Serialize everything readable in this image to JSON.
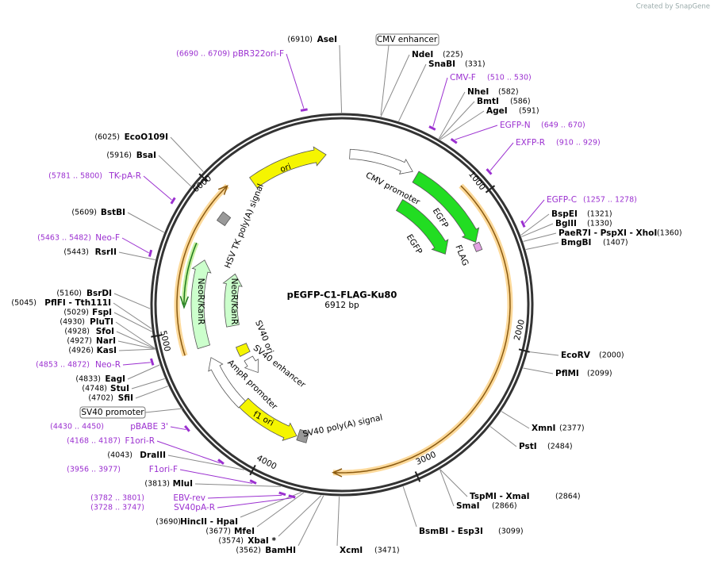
{
  "header": {
    "credit": "Created by SnapGene"
  },
  "map": {
    "name": "pEGFP-C1-FLAG-Ku80",
    "length": "6912 bp",
    "ticks": [
      1000,
      2000,
      3000,
      4000,
      5000,
      6000
    ]
  },
  "outer_labels": [
    "CMV enhancer",
    "SV40 promoter"
  ],
  "features": [
    "ori",
    "CMV promoter",
    "EGFP",
    "FLAG",
    "EGFP",
    "HSV TK poly(A) signal",
    "NeoR/KanR",
    "NeoR/KanR",
    "SV40 ori",
    "SV40 enhancer",
    "AmpR promoter",
    "f1 ori",
    "SV40 poly(A) signal"
  ],
  "sites": [
    {
      "name": "AseI",
      "position": "(6910)"
    },
    {
      "name": "NdeI",
      "position": "(225)"
    },
    {
      "name": "SnaBI",
      "position": "(331)"
    },
    {
      "name": "NheI",
      "position": "(582)"
    },
    {
      "name": "BmtI",
      "position": "(586)"
    },
    {
      "name": "AgeI",
      "position": "(591)"
    },
    {
      "name": "BspEI",
      "position": "(1321)"
    },
    {
      "name": "BglII",
      "position": "(1330)"
    },
    {
      "name": "PaeR7I - PspXI - XhoI",
      "position": "(1360)"
    },
    {
      "name": "BmgBI",
      "position": "(1407)"
    },
    {
      "name": "EcoRV",
      "position": "(2000)"
    },
    {
      "name": "PflMI",
      "position": "(2099)"
    },
    {
      "name": "XmnI",
      "position": "(2377)"
    },
    {
      "name": "PstI",
      "position": "(2484)"
    },
    {
      "name": "TspMI - XmaI",
      "position": "(2864)"
    },
    {
      "name": "SmaI",
      "position": "(2866)"
    },
    {
      "name": "BsmBI - Esp3I",
      "position": "(3099)"
    },
    {
      "name": "XcmI",
      "position": "(3471)"
    },
    {
      "name": "BamHI",
      "position": "(3562)"
    },
    {
      "name": "XbaI *",
      "position": "(3574)"
    },
    {
      "name": "MfeI",
      "position": "(3677)"
    },
    {
      "name": "HincII - HpaI",
      "position": "(3690)"
    },
    {
      "name": "MluI",
      "position": "(3813)"
    },
    {
      "name": "DraIII",
      "position": "(4043)"
    },
    {
      "name": "SfiI",
      "position": "(4702)"
    },
    {
      "name": "StuI",
      "position": "(4748)"
    },
    {
      "name": "EagI",
      "position": "(4833)"
    },
    {
      "name": "KasI",
      "position": "(4926)"
    },
    {
      "name": "NarI",
      "position": "(4927)"
    },
    {
      "name": "SfoI",
      "position": "(4928)"
    },
    {
      "name": "PluTI",
      "position": "(4930)"
    },
    {
      "name": "FspI",
      "position": "(5029)"
    },
    {
      "name": "PflFI - Tth111I",
      "position": "(5045)"
    },
    {
      "name": "BsrDI",
      "position": "(5160)"
    },
    {
      "name": "RsrII",
      "position": "(5443)"
    },
    {
      "name": "BstBI",
      "position": "(5609)"
    },
    {
      "name": "BsaI",
      "position": "(5916)"
    },
    {
      "name": "EcoO109I",
      "position": "(6025)"
    }
  ],
  "primers": [
    {
      "name": "pBR322ori-F",
      "range": "(6690 .. 6709)"
    },
    {
      "name": "CMV-F",
      "range": "(510 .. 530)"
    },
    {
      "name": "EGFP-N",
      "range": "(649 .. 670)"
    },
    {
      "name": "EXFP-R",
      "range": "(910 .. 929)"
    },
    {
      "name": "EGFP-C",
      "range": "(1257 .. 1278)"
    },
    {
      "name": "SV40pA-R",
      "range": "(3728 .. 3747)"
    },
    {
      "name": "EBV-rev",
      "range": "(3782 .. 3801)"
    },
    {
      "name": "F1ori-F",
      "range": "(3956 .. 3977)"
    },
    {
      "name": "F1ori-R",
      "range": "(4168 .. 4187)"
    },
    {
      "name": "pBABE 3'",
      "range": "(4430 .. 4450)"
    },
    {
      "name": "Neo-R",
      "range": "(4853 .. 4872)"
    },
    {
      "name": "Neo-F",
      "range": "(5463 .. 5482)"
    },
    {
      "name": "TK-pA-R",
      "range": "(5781 .. 5800)"
    }
  ]
}
